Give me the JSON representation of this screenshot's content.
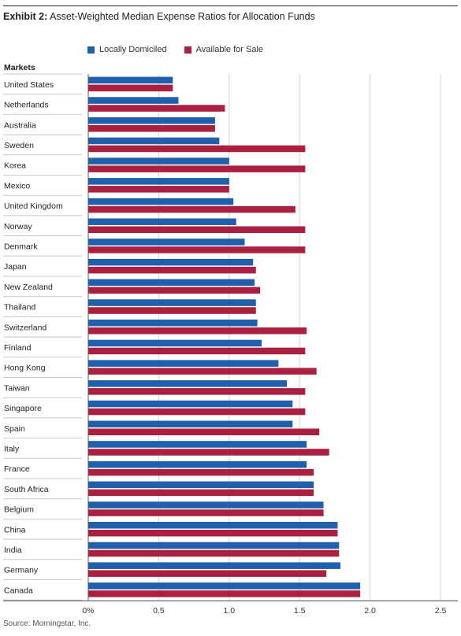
{
  "header": {
    "exhibit": "Exhibit 2:",
    "title": "Asset-Weighted Median Expense Ratios for Allocation Funds"
  },
  "footer": {
    "source": "Source: Morningstar, Inc."
  },
  "colors": {
    "local": "#1f5fae",
    "available": "#ab2040",
    "grid": "#d4d4d4",
    "separator": "#c8c8c8"
  },
  "chart_data": {
    "type": "bar",
    "orientation": "horizontal",
    "category_header": "Markets",
    "categories": [
      "United States",
      "Netherlands",
      "Australia",
      "Sweden",
      "Korea",
      "Mexico",
      "United Kingdom",
      "Norway",
      "Denmark",
      "Japan",
      "New Zealand",
      "Thailand",
      "Switzerland",
      "Finland",
      "Hong Kong",
      "Taiwan",
      "Singapore",
      "Spain",
      "Italy",
      "France",
      "South Africa",
      "Belgium",
      "China",
      "India",
      "Germany",
      "Canada"
    ],
    "series": [
      {
        "name": "Locally Domiciled",
        "values": [
          0.6,
          0.64,
          0.9,
          0.93,
          1.0,
          1.0,
          1.03,
          1.05,
          1.11,
          1.17,
          1.18,
          1.19,
          1.2,
          1.23,
          1.35,
          1.41,
          1.45,
          1.45,
          1.55,
          1.55,
          1.6,
          1.67,
          1.77,
          1.78,
          1.79,
          1.93
        ]
      },
      {
        "name": "Available for Sale",
        "values": [
          0.6,
          0.97,
          0.9,
          1.54,
          1.54,
          1.0,
          1.47,
          1.54,
          1.54,
          1.19,
          1.22,
          1.19,
          1.55,
          1.54,
          1.62,
          1.54,
          1.54,
          1.64,
          1.71,
          1.6,
          1.6,
          1.67,
          1.77,
          1.78,
          1.69,
          1.93
        ]
      }
    ],
    "x_ticks": [
      "0%",
      "0.5",
      "1.0",
      "1.5",
      "2.0",
      "2.5"
    ],
    "x_tick_values": [
      0,
      0.5,
      1.0,
      1.5,
      2.0,
      2.5
    ],
    "xlim": [
      0,
      2.5
    ],
    "grid": true,
    "legend_position": "top"
  }
}
